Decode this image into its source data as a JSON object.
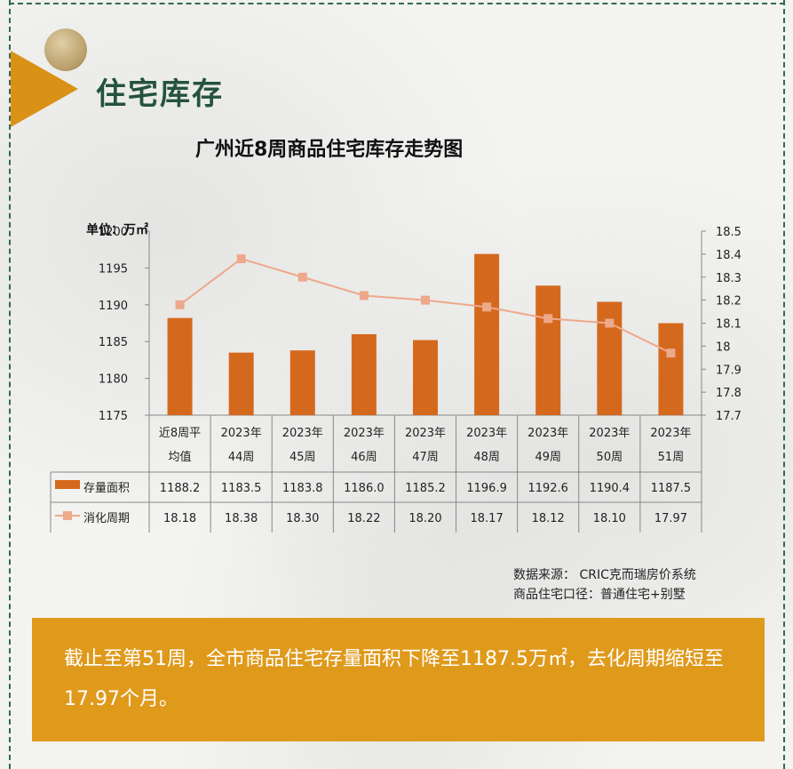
{
  "section_title": "住宅库存",
  "chart_data": {
    "type": "bar",
    "title": "广州近8周商品住宅库存走势图",
    "unit_label": "单位：万㎡",
    "categories": [
      "近8周平均值",
      "2023年44周",
      "2023年45周",
      "2023年46周",
      "2023年47周",
      "2023年48周",
      "2023年49周",
      "2023年50周",
      "2023年51周"
    ],
    "category_lines": [
      [
        "近8周平",
        "均值"
      ],
      [
        "2023年",
        "44周"
      ],
      [
        "2023年",
        "45周"
      ],
      [
        "2023年",
        "46周"
      ],
      [
        "2023年",
        "47周"
      ],
      [
        "2023年",
        "48周"
      ],
      [
        "2023年",
        "49周"
      ],
      [
        "2023年",
        "50周"
      ],
      [
        "2023年",
        "51周"
      ]
    ],
    "series": [
      {
        "name": "存量面积",
        "type": "bar",
        "axis": "left",
        "color": "#d4691e",
        "values": [
          1188.2,
          1183.5,
          1183.8,
          1186.0,
          1185.2,
          1196.9,
          1192.6,
          1190.4,
          1187.5
        ],
        "labels": [
          "1188.2",
          "1183.5",
          "1183.8",
          "1186.0",
          "1185.2",
          "1196.9",
          "1192.6",
          "1190.4",
          "1187.5"
        ]
      },
      {
        "name": "消化周期",
        "type": "line",
        "axis": "right",
        "color": "#eea88a",
        "values": [
          18.18,
          18.38,
          18.3,
          18.22,
          18.2,
          18.17,
          18.12,
          18.1,
          17.97
        ],
        "labels": [
          "18.18",
          "18.38",
          "18.30",
          "18.22",
          "18.20",
          "18.17",
          "18.12",
          "18.10",
          "17.97"
        ]
      }
    ],
    "y_left": {
      "range": [
        1175,
        1200
      ],
      "ticks": [
        "1175",
        "1180",
        "1185",
        "1190",
        "1195",
        "1200"
      ]
    },
    "y_right": {
      "range": [
        17.7,
        18.5
      ],
      "ticks": [
        "17.7",
        "17.8",
        "17.9",
        "18",
        "18.1",
        "18.2",
        "18.3",
        "18.4",
        "18.5"
      ]
    },
    "legend": "data-table"
  },
  "source_lines": [
    "数据来源： CRIC克而瑞房价系统",
    "商品住宅口径：普通住宅+别墅"
  ],
  "summary": "截止至第51周，全市商品住宅存量面积下降至1187.5万㎡，去化周期缩短至17.97个月。",
  "colors": {
    "accent": "#df9a1c",
    "title_green": "#24523f",
    "bar": "#d4691e",
    "line": "#eea88a"
  }
}
